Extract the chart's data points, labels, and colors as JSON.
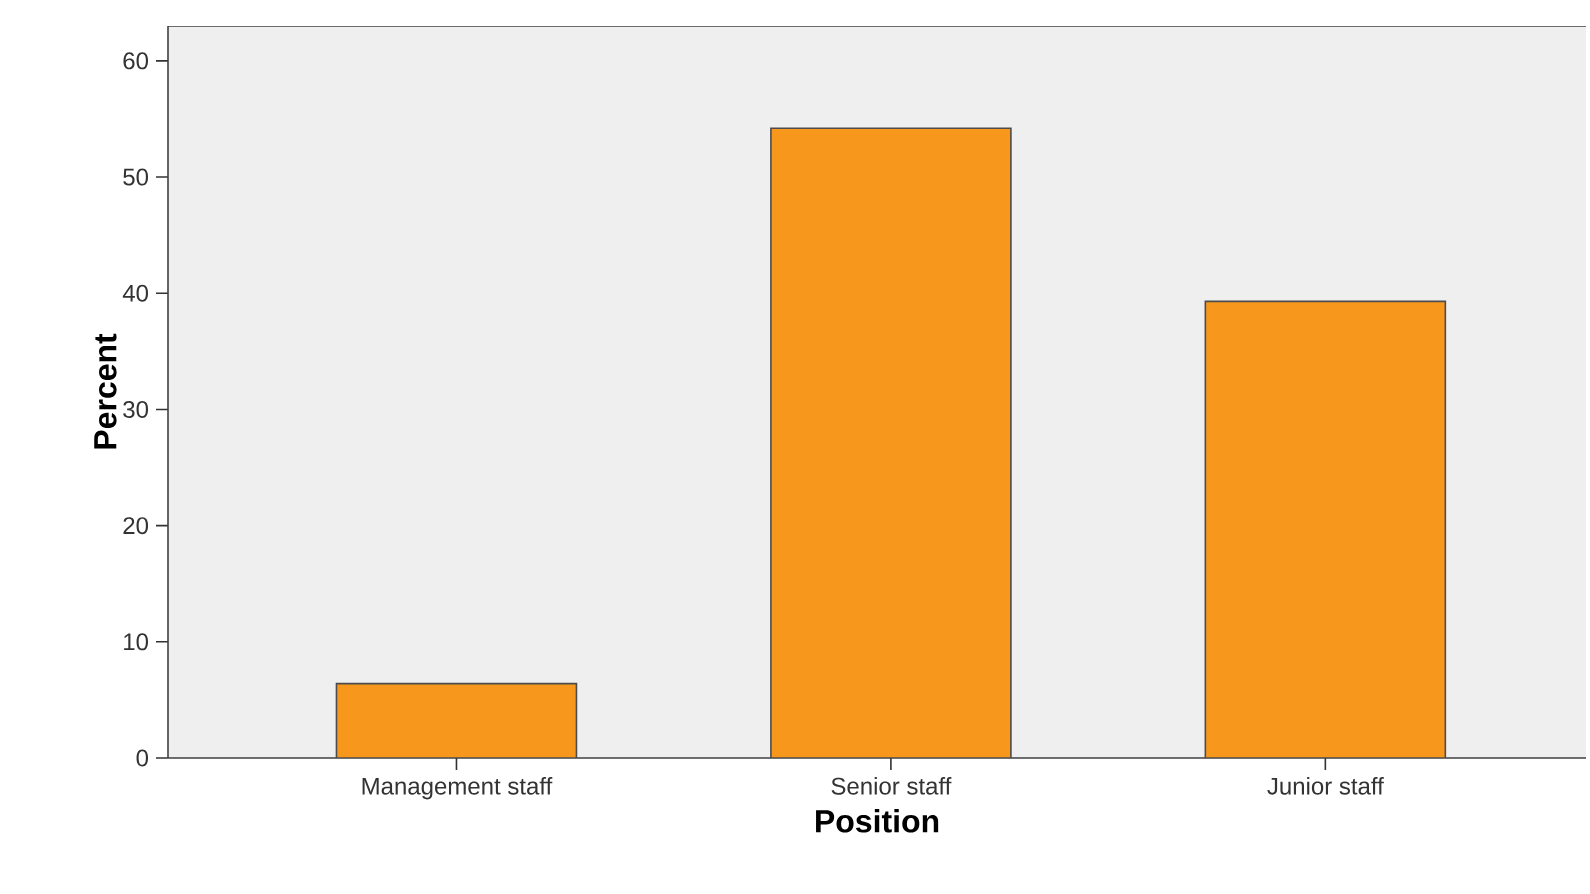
{
  "chart_data": {
    "type": "bar",
    "xlabel": "Position",
    "ylabel": "Percent",
    "categories": [
      "Management staff",
      "Senior staff",
      "Junior staff"
    ],
    "values": [
      6.4,
      54.2,
      39.3
    ],
    "color": "#f7981d",
    "ylim": [
      0,
      63
    ],
    "yticks": [
      0,
      10,
      20,
      30,
      40,
      50,
      60
    ],
    "grid": false
  }
}
